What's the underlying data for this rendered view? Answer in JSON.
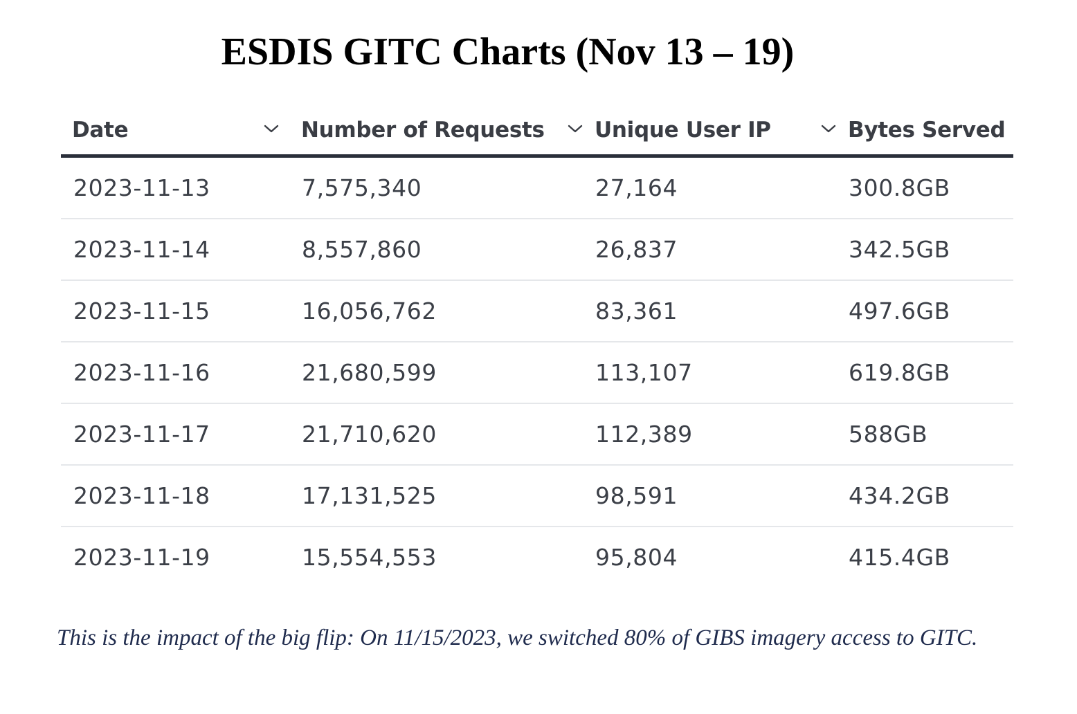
{
  "title": "ESDIS GITC Charts (Nov 13 – 19)",
  "table": {
    "columns": [
      {
        "label": "Date",
        "sort_icon": "chevron-down-icon"
      },
      {
        "label": "Number of Requests",
        "sort_icon": "chevron-down-icon"
      },
      {
        "label": "Unique User IP",
        "sort_icon": "chevron-down-icon"
      },
      {
        "label": "Bytes Served"
      }
    ],
    "rows": [
      {
        "date": "2023-11-13",
        "requests": "7,575,340",
        "unique_ip": "27,164",
        "bytes": "300.8GB"
      },
      {
        "date": "2023-11-14",
        "requests": "8,557,860",
        "unique_ip": "26,837",
        "bytes": "342.5GB"
      },
      {
        "date": "2023-11-15",
        "requests": "16,056,762",
        "unique_ip": "83,361",
        "bytes": "497.6GB"
      },
      {
        "date": "2023-11-16",
        "requests": "21,680,599",
        "unique_ip": "113,107",
        "bytes": "619.8GB"
      },
      {
        "date": "2023-11-17",
        "requests": "21,710,620",
        "unique_ip": "112,389",
        "bytes": "588GB"
      },
      {
        "date": "2023-11-18",
        "requests": "17,131,525",
        "unique_ip": "98,591",
        "bytes": "434.2GB"
      },
      {
        "date": "2023-11-19",
        "requests": "15,554,553",
        "unique_ip": "95,804",
        "bytes": "415.4GB"
      }
    ]
  },
  "caption": "This is the impact of the big flip: On 11/15/2023, we switched 80% of GIBS imagery access to GITC.",
  "colors": {
    "header_rule": "#2a2f3a",
    "row_divider": "#e5e7ea",
    "cell_text": "#3b3f47",
    "caption_text": "#1f2b4d"
  }
}
